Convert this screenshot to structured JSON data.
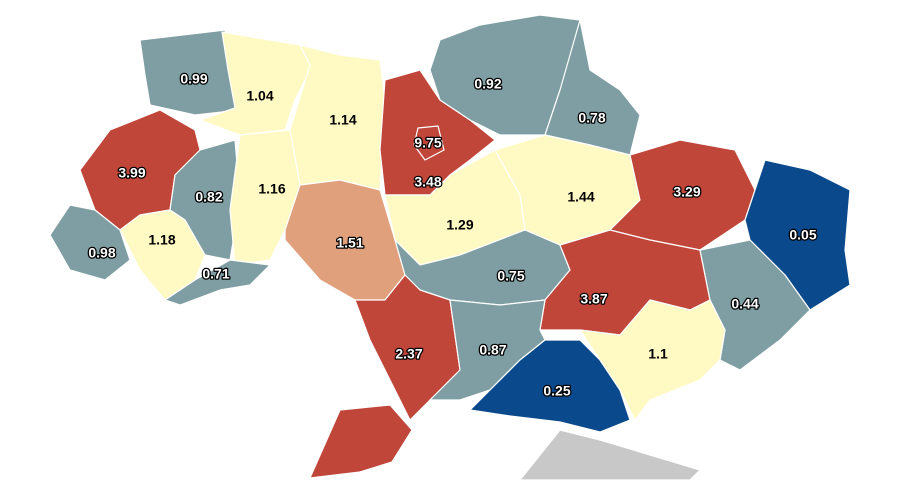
{
  "map": {
    "regions": [
      {
        "value": 0.99,
        "color": "#7f9ea3"
      },
      {
        "value": 1.04,
        "color": "#fff9c4"
      },
      {
        "value": 1.14,
        "color": "#fff9c4"
      },
      {
        "value": 3.48,
        "color": "#c0463a"
      },
      {
        "value": 9.75,
        "color": "#c0463a"
      },
      {
        "value": 0.92,
        "color": "#7f9ea3"
      },
      {
        "value": 0.78,
        "color": "#7f9ea3"
      },
      {
        "value": 3.99,
        "color": "#c0463a"
      },
      {
        "value": 0.82,
        "color": "#7f9ea3"
      },
      {
        "value": 1.16,
        "color": "#fff9c4"
      },
      {
        "value": 0.98,
        "color": "#7f9ea3"
      },
      {
        "value": 1.18,
        "color": "#fff9c4"
      },
      {
        "value": 0.71,
        "color": "#7f9ea3"
      },
      {
        "value": 1.51,
        "color": "#e0a07c"
      },
      {
        "value": 1.29,
        "color": "#fff9c4"
      },
      {
        "value": 1.44,
        "color": "#fff9c4"
      },
      {
        "value": 3.29,
        "color": "#c0463a"
      },
      {
        "value": 0.05,
        "color": "#0a4a8c"
      },
      {
        "value": 0.75,
        "color": "#7f9ea3"
      },
      {
        "value": 3.87,
        "color": "#c0463a"
      },
      {
        "value": 0.44,
        "color": "#7f9ea3"
      },
      {
        "value": 2.37,
        "color": "#c0463a"
      },
      {
        "value": 0.87,
        "color": "#7f9ea3"
      },
      {
        "value": 0.25,
        "color": "#0a4a8c"
      },
      {
        "value": 1.1,
        "color": "#fff9c4"
      }
    ]
  }
}
